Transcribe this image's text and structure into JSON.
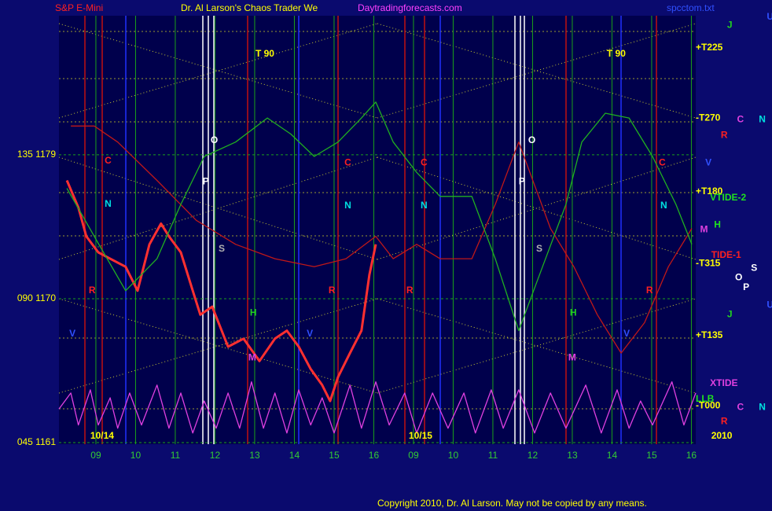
{
  "chart_data": {
    "type": "line",
    "symbol": "S&P E-Mini",
    "title": "Dr. Al Larson's Chaos Trader We",
    "website": "Daytradingforecasts.com",
    "filename": "spcctom.txt",
    "copyright": "Copyright 2010, Dr. Al Larson. May not be copied by any means.",
    "xlim": [
      -0.93,
      15.11
    ],
    "ylim": [
      1160.9,
      1187.7
    ],
    "xticks": [
      {
        "value": 0,
        "label": "09"
      },
      {
        "value": 1,
        "label": "10"
      },
      {
        "value": 2,
        "label": "11"
      },
      {
        "value": 3,
        "label": "12"
      },
      {
        "value": 4,
        "label": "13"
      },
      {
        "value": 5,
        "label": "14"
      },
      {
        "value": 6,
        "label": "15"
      },
      {
        "value": 7,
        "label": "16"
      },
      {
        "value": 8,
        "label": "09"
      },
      {
        "value": 9,
        "label": "10"
      },
      {
        "value": 10,
        "label": "11"
      },
      {
        "value": 11,
        "label": "12"
      },
      {
        "value": 12,
        "label": "13"
      },
      {
        "value": 13,
        "label": "14"
      },
      {
        "value": 14,
        "label": "15"
      },
      {
        "value": 15,
        "label": "16"
      }
    ],
    "yticks": [
      {
        "value": 1179,
        "label": "135  1179"
      },
      {
        "value": 1170,
        "label": "090  1170"
      },
      {
        "value": 1161,
        "label": "045  1161"
      }
    ],
    "grid": true,
    "series": [
      {
        "color": "#ff3030",
        "x": [
          -0.73,
          -0.44,
          -0.24,
          0.06,
          0.36,
          0.75,
          1.05,
          1.35,
          1.64,
          1.84,
          2.14,
          2.44,
          2.63,
          2.93,
          3.33,
          3.72,
          4.12,
          4.51,
          4.81,
          5.11,
          5.41,
          5.7,
          5.9,
          6.1,
          6.4,
          6.69,
          6.89,
          7.05
        ],
        "values": [
          1177.4,
          1175.7,
          1173.9,
          1172.9,
          1172.5,
          1172.0,
          1170.5,
          1173.4,
          1174.7,
          1173.9,
          1172.9,
          1170.5,
          1169.0,
          1169.5,
          1167.0,
          1167.5,
          1166.1,
          1167.5,
          1168.0,
          1167.0,
          1165.6,
          1164.6,
          1163.6,
          1165.1,
          1166.6,
          1168.0,
          1171.5,
          1173.4
        ]
      },
      {
        "color": "#c01818",
        "x": [
          -0.63,
          -0.04,
          0.55,
          1.54,
          2.53,
          3.52,
          4.51,
          5.5,
          6.3,
          7.05,
          7.49,
          8.08,
          8.67,
          9.47,
          10.06,
          10.65,
          11.45,
          12.04,
          12.63,
          13.23,
          13.82,
          14.42,
          15.01
        ],
        "values": [
          1180.8,
          1180.8,
          1179.8,
          1177.4,
          1174.9,
          1173.4,
          1172.5,
          1172.0,
          1172.5,
          1173.9,
          1172.5,
          1173.4,
          1172.5,
          1172.5,
          1175.9,
          1179.8,
          1174.4,
          1172.0,
          1169.0,
          1166.6,
          1168.5,
          1172.0,
          1174.4
        ]
      },
      {
        "color": "#20b020",
        "x": [
          -0.73,
          -0.04,
          0.75,
          1.54,
          2.14,
          2.73,
          3.52,
          4.32,
          4.91,
          5.5,
          6.1,
          6.69,
          7.05,
          7.49,
          8.08,
          8.67,
          9.47,
          10.06,
          10.65,
          11.25,
          11.84,
          12.24,
          12.83,
          13.43,
          14.02,
          14.61,
          15.01
        ],
        "values": [
          1176.9,
          1173.9,
          1170.5,
          1172.5,
          1175.9,
          1178.9,
          1179.8,
          1181.3,
          1180.3,
          1178.9,
          1179.8,
          1181.3,
          1182.3,
          1179.8,
          1177.9,
          1176.4,
          1176.4,
          1172.5,
          1168.0,
          1172.0,
          1175.9,
          1179.8,
          1181.6,
          1181.3,
          1178.9,
          1175.9,
          1173.4
        ]
      },
      {
        "color": "#e040e0",
        "x": [
          -0.93,
          -0.63,
          -0.44,
          -0.14,
          0.06,
          0.36,
          0.55,
          0.85,
          1.15,
          1.54,
          1.84,
          2.14,
          2.44,
          2.73,
          3.03,
          3.33,
          3.62,
          3.92,
          4.22,
          4.51,
          4.81,
          5.11,
          5.41,
          5.7,
          6.0,
          6.4,
          6.69,
          7.05,
          7.39,
          7.78,
          8.08,
          8.48,
          8.87,
          9.27,
          9.56,
          9.96,
          10.26,
          10.65,
          11.05,
          11.45,
          11.84,
          12.34,
          12.73,
          13.13,
          13.43,
          13.72,
          14.02,
          14.51,
          14.81,
          15.11
        ],
        "values": [
          1163.1,
          1164.1,
          1162.1,
          1164.3,
          1162.1,
          1163.8,
          1161.9,
          1164.1,
          1162.1,
          1164.6,
          1161.9,
          1164.1,
          1161.6,
          1163.6,
          1161.9,
          1164.1,
          1161.9,
          1164.8,
          1161.9,
          1164.1,
          1161.6,
          1164.3,
          1162.1,
          1163.8,
          1161.6,
          1164.6,
          1161.9,
          1164.8,
          1162.1,
          1164.1,
          1161.6,
          1164.1,
          1161.9,
          1164.1,
          1161.6,
          1164.3,
          1161.9,
          1164.3,
          1161.6,
          1164.1,
          1161.9,
          1164.6,
          1161.6,
          1164.3,
          1161.9,
          1163.6,
          1162.1,
          1164.8,
          1162.1,
          1164.1
        ]
      }
    ],
    "annotations": [
      {
        "text": "T  90",
        "x": 4.02,
        "y": 1185.3,
        "color": "#ffff00"
      },
      {
        "text": "T  90",
        "x": 12.87,
        "y": 1185.3,
        "color": "#ffff00"
      },
      {
        "text": "C",
        "x": 0.22,
        "y": 1178.6,
        "color": "#ff2020"
      },
      {
        "text": "N",
        "x": 0.22,
        "y": 1175.9,
        "color": "#00e0e0"
      },
      {
        "text": "R",
        "x": -0.18,
        "y": 1170.5,
        "color": "#ff2020"
      },
      {
        "text": "V",
        "x": -0.67,
        "y": 1167.8,
        "color": "#3050ff"
      },
      {
        "text": "P",
        "x": 2.69,
        "y": 1177.3,
        "color": "#ffffff"
      },
      {
        "text": "O",
        "x": 2.89,
        "y": 1179.9,
        "color": "#ffffff"
      },
      {
        "text": "S",
        "x": 3.09,
        "y": 1173.1,
        "color": "#b0b0b0"
      },
      {
        "text": "H",
        "x": 3.88,
        "y": 1169.1,
        "color": "#20d020"
      },
      {
        "text": "M",
        "x": 3.84,
        "y": 1166.3,
        "color": "#e040e0"
      },
      {
        "text": "V",
        "x": 5.31,
        "y": 1167.8,
        "color": "#3050ff"
      },
      {
        "text": "R",
        "x": 5.86,
        "y": 1170.5,
        "color": "#ff2020"
      },
      {
        "text": "C",
        "x": 6.26,
        "y": 1178.5,
        "color": "#ff2020"
      },
      {
        "text": "N",
        "x": 6.26,
        "y": 1175.8,
        "color": "#00e0e0"
      },
      {
        "text": "C",
        "x": 8.18,
        "y": 1178.5,
        "color": "#ff2020"
      },
      {
        "text": "N",
        "x": 8.18,
        "y": 1175.8,
        "color": "#00e0e0"
      },
      {
        "text": "R",
        "x": 7.82,
        "y": 1170.5,
        "color": "#ff2020"
      },
      {
        "text": "P",
        "x": 10.65,
        "y": 1177.3,
        "color": "#ffffff"
      },
      {
        "text": "O",
        "x": 10.89,
        "y": 1179.9,
        "color": "#ffffff"
      },
      {
        "text": "S",
        "x": 11.09,
        "y": 1173.1,
        "color": "#b0b0b0"
      },
      {
        "text": "H",
        "x": 11.94,
        "y": 1169.1,
        "color": "#20d020"
      },
      {
        "text": "M",
        "x": 11.9,
        "y": 1166.3,
        "color": "#e040e0"
      },
      {
        "text": "V",
        "x": 13.29,
        "y": 1167.8,
        "color": "#3050ff"
      },
      {
        "text": "R",
        "x": 13.86,
        "y": 1170.5,
        "color": "#ff2020"
      },
      {
        "text": "C",
        "x": 14.18,
        "y": 1178.5,
        "color": "#ff2020"
      },
      {
        "text": "N",
        "x": 14.22,
        "y": 1175.8,
        "color": "#00e0e0"
      },
      {
        "text": "+T225",
        "x": 15.11,
        "y": 1185.7,
        "color": "#ffff00"
      },
      {
        "text": "-T270",
        "x": 15.11,
        "y": 1181.3,
        "color": "#ffff00"
      },
      {
        "text": "+T180",
        "x": 15.11,
        "y": 1176.7,
        "color": "#ffff00"
      },
      {
        "text": "VTIDE-2",
        "x": 15.47,
        "y": 1176.3,
        "color": "#20e020"
      },
      {
        "text": "TIDE-1",
        "x": 15.5,
        "y": 1172.7,
        "color": "#ff2020"
      },
      {
        "text": "-T315",
        "x": 15.11,
        "y": 1172.2,
        "color": "#ffff00"
      },
      {
        "text": "+T135",
        "x": 15.11,
        "y": 1167.7,
        "color": "#ffff00"
      },
      {
        "text": "XTIDE",
        "x": 15.47,
        "y": 1164.7,
        "color": "#e040e0"
      },
      {
        "text": "LLB",
        "x": 15.11,
        "y": 1163.7,
        "color": "#20e020"
      },
      {
        "text": "-T000",
        "x": 15.11,
        "y": 1163.3,
        "color": "#ffff00"
      },
      {
        "text": "J",
        "x": 15.9,
        "y": 1187.1,
        "color": "#20d020"
      },
      {
        "text": "U",
        "x": 16.9,
        "y": 1187.6,
        "color": "#3050ff"
      },
      {
        "text": "C",
        "x": 16.15,
        "y": 1181.2,
        "color": "#e040e0"
      },
      {
        "text": "N",
        "x": 16.7,
        "y": 1181.2,
        "color": "#00e0e0"
      },
      {
        "text": "R",
        "x": 15.74,
        "y": 1180.2,
        "color": "#ff2020"
      },
      {
        "text": "V",
        "x": 15.35,
        "y": 1178.5,
        "color": "#3050ff"
      },
      {
        "text": "H",
        "x": 15.57,
        "y": 1174.6,
        "color": "#20e020"
      },
      {
        "text": "M",
        "x": 15.22,
        "y": 1174.3,
        "color": "#e040e0"
      },
      {
        "text": "O",
        "x": 16.1,
        "y": 1171.3,
        "color": "#ffffff"
      },
      {
        "text": "S",
        "x": 16.5,
        "y": 1171.9,
        "color": "#ffffff"
      },
      {
        "text": "P",
        "x": 16.3,
        "y": 1170.7,
        "color": "#ffffff"
      },
      {
        "text": "J",
        "x": 15.9,
        "y": 1169.0,
        "color": "#20d020"
      },
      {
        "text": "U",
        "x": 16.9,
        "y": 1169.6,
        "color": "#3050ff"
      },
      {
        "text": "C",
        "x": 16.15,
        "y": 1163.2,
        "color": "#e040e0"
      },
      {
        "text": "N",
        "x": 16.7,
        "y": 1163.2,
        "color": "#00e0e0"
      },
      {
        "text": "R",
        "x": 15.74,
        "y": 1162.3,
        "color": "#ff2020"
      },
      {
        "text": "10/14",
        "x": -0.14,
        "y": 1161.4,
        "color": "#ffff00"
      },
      {
        "text": "10/15",
        "x": 7.88,
        "y": 1161.4,
        "color": "#ffff00"
      },
      {
        "text": "2010",
        "x": 15.5,
        "y": 1161.4,
        "color": "#ffff00"
      }
    ]
  }
}
